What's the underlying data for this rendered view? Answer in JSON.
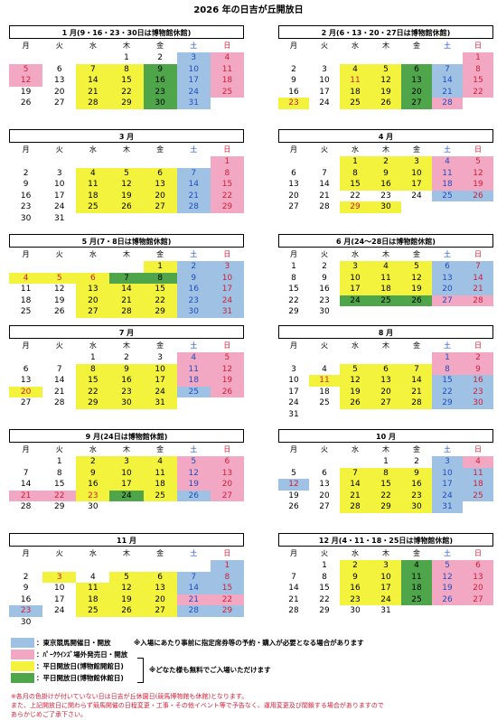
{
  "title": "2026 年の日吉が丘開放日",
  "weekdays": [
    "月",
    "火",
    "水",
    "木",
    "金",
    "土",
    "日"
  ],
  "fill_colors": {
    "b": "#9fc1e3",
    "p": "#f2a7c3",
    "y": "#f3f23c",
    "g": "#4fa64a"
  },
  "months": [
    {
      "title": "1 月(9・16・23・30日は博物館休館)",
      "weeks": [
        [
          null,
          null,
          null,
          "1",
          "2",
          "3",
          "4"
        ],
        [
          "5",
          "6",
          "7",
          "8",
          "9",
          "10",
          "11"
        ],
        [
          "12",
          "13",
          "14",
          "15",
          "16",
          "17",
          "18"
        ],
        [
          "19",
          "20",
          "21",
          "22",
          "23",
          "24",
          "25"
        ],
        [
          "26",
          "27",
          "28",
          "29",
          "30",
          "31",
          null
        ]
      ],
      "fills": [
        "....-bp",
        "P.yygbp",
        "P.yygbp",
        "..yygbp",
        "..yygb."
      ]
    },
    {
      "title": "2 月(6・13・20・27日は博物館休館)",
      "weeks": [
        [
          null,
          null,
          null,
          null,
          null,
          null,
          "1"
        ],
        [
          "2",
          "3",
          "4",
          "5",
          "6",
          "7",
          "8"
        ],
        [
          "9",
          "10",
          "11",
          "12",
          "13",
          "14",
          "15"
        ],
        [
          "16",
          "17",
          "18",
          "19",
          "20",
          "21",
          "22"
        ],
        [
          "23",
          "24",
          "25",
          "26",
          "27",
          "28",
          null
        ]
      ],
      "fills": [
        "......p",
        "..yygbp",
        "..Yygbp",
        "..yygbp",
        "Y.yygp."
      ]
    },
    {
      "title": "3 月",
      "weeks": [
        [
          null,
          null,
          null,
          null,
          null,
          null,
          "1"
        ],
        [
          "2",
          "3",
          "4",
          "5",
          "6",
          "7",
          "8"
        ],
        [
          "9",
          "10",
          "11",
          "12",
          "13",
          "14",
          "15"
        ],
        [
          "16",
          "17",
          "18",
          "19",
          "20",
          "21",
          "22"
        ],
        [
          "23",
          "24",
          "25",
          "26",
          "27",
          "28",
          "29"
        ],
        [
          "30",
          "31",
          null,
          null,
          null,
          null,
          null
        ]
      ],
      "fills": [
        "......p",
        "..yyybp",
        "..yyybp",
        "..yyybp",
        "..yyybp",
        "......."
      ]
    },
    {
      "title": "4 月",
      "weeks": [
        [
          null,
          null,
          "1",
          "2",
          "3",
          "4",
          "5"
        ],
        [
          "6",
          "7",
          "8",
          "9",
          "10",
          "11",
          "12"
        ],
        [
          "13",
          "14",
          "15",
          "16",
          "17",
          "18",
          "19"
        ],
        [
          "20",
          "21",
          "22",
          "23",
          "24",
          "25",
          "26"
        ],
        [
          "27",
          "28",
          "29",
          "30",
          null,
          null,
          null
        ]
      ],
      "fills": [
        "..yyypp",
        "..yyypp",
        "..yyypp",
        ".....bb",
        "..Yy..."
      ]
    },
    {
      "title": "5 月(7・8日は博物館休館)",
      "weeks": [
        [
          null,
          null,
          null,
          null,
          "1",
          "2",
          "3"
        ],
        [
          "4",
          "5",
          "6",
          "7",
          "8",
          "9",
          "10"
        ],
        [
          "11",
          "12",
          "13",
          "14",
          "15",
          "16",
          "17"
        ],
        [
          "18",
          "19",
          "20",
          "21",
          "22",
          "23",
          "24"
        ],
        [
          "25",
          "26",
          "27",
          "28",
          "29",
          "30",
          "31"
        ]
      ],
      "fills": [
        "....ybb",
        "YYYggbb",
        "..yyybb",
        "..yyybb",
        "..yyybb"
      ]
    },
    {
      "title": "6 月(24～28日は博物館休館)",
      "weeks": [
        [
          "1",
          "2",
          "3",
          "4",
          "5",
          "6",
          "7"
        ],
        [
          "8",
          "9",
          "10",
          "11",
          "12",
          "13",
          "14"
        ],
        [
          "15",
          "16",
          "17",
          "18",
          "19",
          "20",
          "21"
        ],
        [
          "22",
          "23",
          "24",
          "25",
          "26",
          "27",
          "28"
        ],
        [
          "29",
          "30",
          null,
          null,
          null,
          null,
          null
        ]
      ],
      "fills": [
        "..yyybb",
        "..yyybb",
        "..yyybb",
        "..gggpp",
        "......."
      ]
    },
    {
      "title": "7 月",
      "weeks": [
        [
          null,
          null,
          "1",
          "2",
          "3",
          "4",
          "5"
        ],
        [
          "6",
          "7",
          "8",
          "9",
          "10",
          "11",
          "12"
        ],
        [
          "13",
          "14",
          "15",
          "16",
          "17",
          "18",
          "19"
        ],
        [
          "20",
          "21",
          "22",
          "23",
          "24",
          "25",
          "26"
        ],
        [
          "27",
          "28",
          "29",
          "30",
          "31",
          null,
          null
        ]
      ],
      "fills": [
        ".....pp",
        "..yyypp",
        "..yyypp",
        "Y.yyybp",
        "..yyy.."
      ]
    },
    {
      "title": "8 月",
      "weeks": [
        [
          null,
          null,
          null,
          null,
          null,
          "1",
          "2"
        ],
        [
          "3",
          "4",
          "5",
          "6",
          "7",
          "8",
          "9"
        ],
        [
          "10",
          "11",
          "12",
          "13",
          "14",
          "15",
          "16"
        ],
        [
          "17",
          "18",
          "19",
          "20",
          "21",
          "22",
          "23"
        ],
        [
          "24",
          "25",
          "26",
          "27",
          "28",
          "29",
          "30"
        ],
        [
          "31",
          null,
          null,
          null,
          null,
          null,
          null
        ]
      ],
      "fills": [
        ".....pp",
        "..yyypp",
        ".Yyyybb",
        "..yyybb",
        "..yyybb",
        "......."
      ]
    },
    {
      "title": "9 月(24日は博物館休館)",
      "weeks": [
        [
          null,
          "1",
          "2",
          "3",
          "4",
          "5",
          "6"
        ],
        [
          "7",
          "8",
          "9",
          "10",
          "11",
          "12",
          "13"
        ],
        [
          "14",
          "15",
          "16",
          "17",
          "18",
          "19",
          "20"
        ],
        [
          "21",
          "22",
          "23",
          "24",
          "25",
          "26",
          "27"
        ],
        [
          "28",
          "29",
          "30",
          null,
          null,
          null,
          null
        ]
      ],
      "fills": [
        "..yyypp",
        "..yyypp",
        "..yyypp",
        "PPYgybp",
        "......."
      ]
    },
    {
      "title": "10 月",
      "weeks": [
        [
          null,
          null,
          null,
          "1",
          "2",
          "3",
          "4"
        ],
        [
          "5",
          "6",
          "7",
          "8",
          "9",
          "10",
          "11"
        ],
        [
          "12",
          "13",
          "14",
          "15",
          "16",
          "17",
          "18"
        ],
        [
          "19",
          "20",
          "21",
          "22",
          "23",
          "24",
          "25"
        ],
        [
          "26",
          "27",
          "28",
          "29",
          "30",
          "31",
          null
        ]
      ],
      "fills": [
        ".....bp",
        "..yyybb",
        "B.yyybb",
        "..yyybb",
        "..yyyb."
      ]
    },
    {
      "title": "11 月",
      "weeks": [
        [
          null,
          null,
          null,
          null,
          null,
          null,
          "1"
        ],
        [
          "2",
          "3",
          "4",
          "5",
          "6",
          "7",
          "8"
        ],
        [
          "9",
          "10",
          "11",
          "12",
          "13",
          "14",
          "15"
        ],
        [
          "16",
          "17",
          "18",
          "19",
          "20",
          "21",
          "22"
        ],
        [
          "23",
          "24",
          "25",
          "26",
          "27",
          "28",
          "29"
        ],
        [
          "30",
          null,
          null,
          null,
          null,
          null,
          null
        ]
      ],
      "fills": [
        "......b",
        ".Y.yybb",
        "..yyybb",
        "..yyypp",
        "B.yyybb",
        "......."
      ]
    },
    {
      "title": "12 月(4・11・18・25日は博物館休館)",
      "weeks": [
        [
          null,
          "1",
          "2",
          "3",
          "4",
          "5",
          "6"
        ],
        [
          "7",
          "8",
          "9",
          "10",
          "11",
          "12",
          "13"
        ],
        [
          "14",
          "15",
          "16",
          "17",
          "18",
          "19",
          "20"
        ],
        [
          "21",
          "22",
          "23",
          "24",
          "25",
          "26",
          "27"
        ],
        [
          "28",
          "29",
          "30",
          "31",
          null,
          null,
          null
        ]
      ],
      "fills": [
        "..yygpp",
        "..yygpp",
        "..yygpp",
        "..yygpp",
        "......."
      ]
    }
  ],
  "legend": [
    {
      "fill": "b",
      "label": "：東京競馬開催日・開放"
    },
    {
      "fill": "p",
      "label": "：ﾊﾟｰｸｳｲﾝｽﾞ場外発売日・開放"
    },
    {
      "fill": "y",
      "label": "：平日開放日(博物館開館日)"
    },
    {
      "fill": "g",
      "label": "：平日開放日(博物館休館日)"
    }
  ],
  "legend_note": "※入場にあたり事前に指定席券等の予約・購入が必要となる場合があります",
  "free_note": "※どなた様も無料でご入場いただけます",
  "footer": [
    "※各月の色掛けが付いていない日は日吉が丘休園日(競馬博物館も休館)となります。",
    "また、上記開放日に関わらず競馬開催の日程変更・工事・その他イベント等で予告なく、運用変更及び閉鎖する場合がありますので",
    "あらかじめご了承下さい。"
  ]
}
